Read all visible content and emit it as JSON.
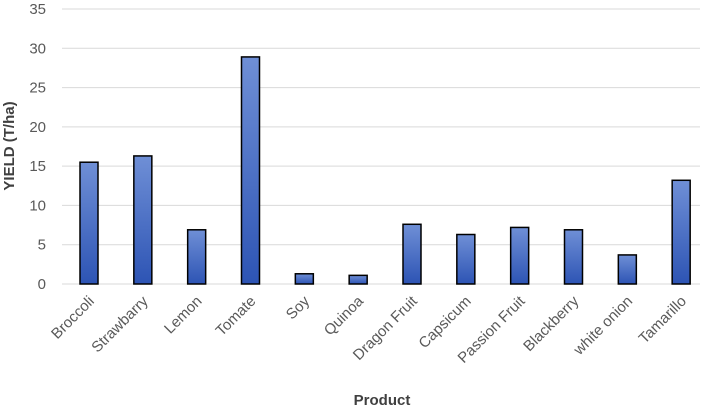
{
  "chart_data": {
    "type": "bar",
    "title": "",
    "xlabel": "Product",
    "ylabel": "YIELD (T/ha)",
    "categories": [
      "Broccoli",
      "Strawbarry",
      "Lemon",
      "Tomate",
      "Soy",
      "Quinoa",
      "Dragon Fruit",
      "Capsicum",
      "Passion Fruit",
      "Blackberry",
      "white onion",
      "Tamarillo"
    ],
    "values": [
      15.5,
      16.3,
      6.9,
      28.9,
      1.3,
      1.1,
      7.6,
      6.3,
      7.2,
      6.9,
      3.7,
      13.2
    ],
    "ylim": [
      0,
      35
    ],
    "yticks": [
      0,
      5,
      10,
      15,
      20,
      25,
      30,
      35
    ],
    "grid": true,
    "legend": "none",
    "colors": {
      "bar_top": "#6f8fd6",
      "bar_bottom": "#2d54b4",
      "bar_outline": "#000000",
      "grid": "#d9d9d9"
    }
  }
}
